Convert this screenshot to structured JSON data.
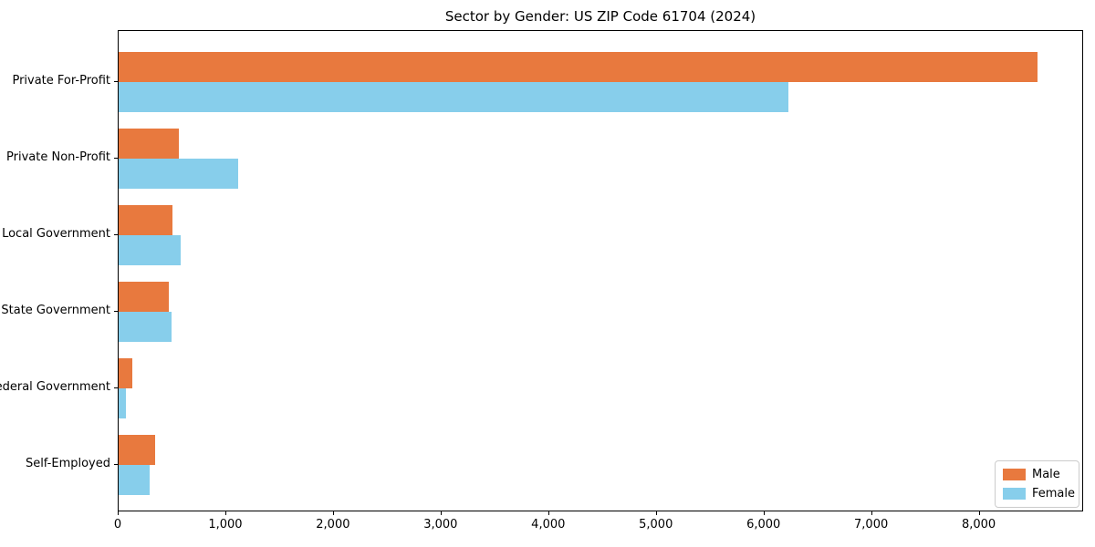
{
  "chart_data": {
    "type": "bar",
    "orientation": "horizontal",
    "title": "Sector by Gender: US ZIP Code 61704 (2024)",
    "categories": [
      "Private For-Profit",
      "Private Non-Profit",
      "Local Government",
      "State Government",
      "Federal Government",
      "Self-Employed"
    ],
    "series": [
      {
        "name": "Male",
        "color": "#e8793e",
        "values": [
          8540,
          560,
          500,
          465,
          125,
          340
        ]
      },
      {
        "name": "Female",
        "color": "#87ceeb",
        "values": [
          6220,
          1110,
          575,
          490,
          65,
          290
        ]
      }
    ],
    "xlabel": "",
    "ylabel": "",
    "xlim": [
      0,
      8970
    ],
    "xticks": [
      0,
      1000,
      2000,
      3000,
      4000,
      5000,
      6000,
      7000,
      8000
    ],
    "xtick_labels": [
      "0",
      "1,000",
      "2,000",
      "3,000",
      "4,000",
      "5,000",
      "6,000",
      "7,000",
      "8,000"
    ],
    "grid": false,
    "frame": true,
    "legend": {
      "position": "lower right",
      "entries": [
        "Male",
        "Female"
      ]
    },
    "colors": {
      "male": "#e8793e",
      "female": "#87ceeb",
      "axis": "#000000",
      "legend_border": "#cccccc",
      "background": "#ffffff"
    }
  }
}
